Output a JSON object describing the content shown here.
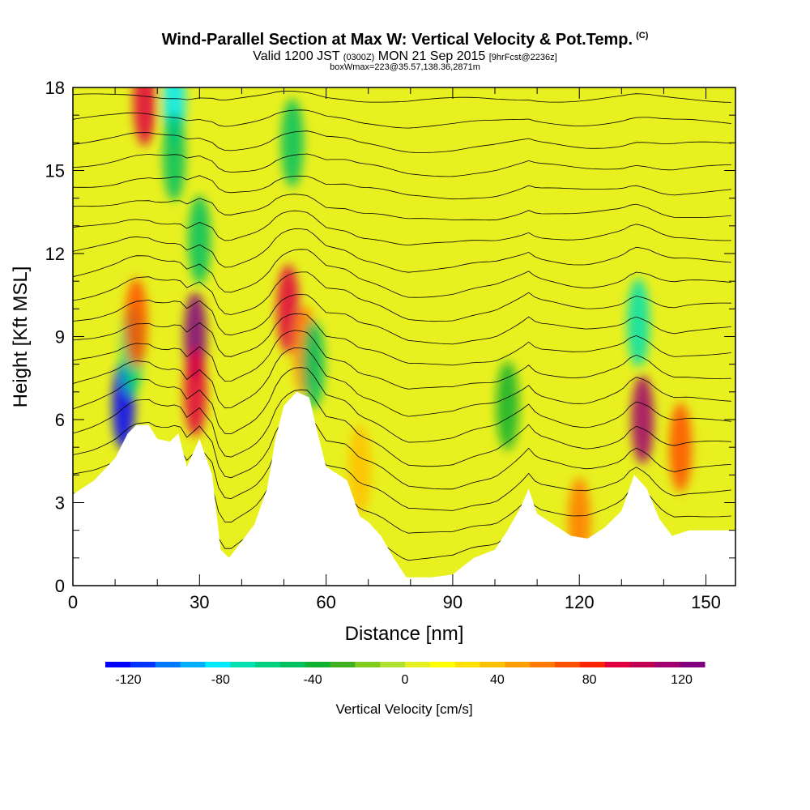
{
  "header": {
    "title": "Wind-Parallel Section at Max W: Vertical Velocity & Pot.Temp.",
    "copyright": "(C)",
    "valid_prefix": "Valid 1200 JST",
    "valid_utc": "(0300Z)",
    "valid_date": "MON 21 Sep 2015",
    "forecast": "[9hrFcst@2236z]",
    "box_info": "boxWmax=223@35.57,138.36,2871m"
  },
  "chart_data": {
    "type": "heatmap",
    "xlabel": "Distance [nm]",
    "ylabel": "Height [Kft MSL]",
    "xlim": [
      0,
      157
    ],
    "ylim": [
      0,
      18
    ],
    "xticks": [
      0,
      30,
      60,
      90,
      120,
      150
    ],
    "yticks": [
      0,
      3,
      6,
      9,
      12,
      15,
      18
    ],
    "terrain_kft": [
      [
        0,
        3.3
      ],
      [
        5,
        3.8
      ],
      [
        10,
        4.6
      ],
      [
        13,
        5.5
      ],
      [
        15,
        5.8
      ],
      [
        18,
        5.8
      ],
      [
        20,
        5.3
      ],
      [
        23,
        5.2
      ],
      [
        25,
        5.5
      ],
      [
        27,
        4.3
      ],
      [
        30,
        5.3
      ],
      [
        33,
        4.0
      ],
      [
        35,
        1.3
      ],
      [
        37,
        1.0
      ],
      [
        40,
        1.6
      ],
      [
        43,
        2.2
      ],
      [
        46,
        3.5
      ],
      [
        48,
        5.3
      ],
      [
        50,
        6.5
      ],
      [
        53,
        7.0
      ],
      [
        56,
        6.8
      ],
      [
        58,
        5.5
      ],
      [
        60,
        4.3
      ],
      [
        63,
        4.0
      ],
      [
        65,
        3.8
      ],
      [
        68,
        2.5
      ],
      [
        70,
        2.3
      ],
      [
        73,
        1.8
      ],
      [
        76,
        1.0
      ],
      [
        79,
        0.3
      ],
      [
        85,
        0.3
      ],
      [
        90,
        0.4
      ],
      [
        95,
        1.0
      ],
      [
        100,
        1.3
      ],
      [
        103,
        2.0
      ],
      [
        106,
        2.8
      ],
      [
        108,
        3.5
      ],
      [
        110,
        2.6
      ],
      [
        113,
        2.3
      ],
      [
        118,
        1.8
      ],
      [
        122,
        1.7
      ],
      [
        126,
        2.1
      ],
      [
        130,
        2.7
      ],
      [
        133,
        4.0
      ],
      [
        136,
        3.5
      ],
      [
        139,
        2.4
      ],
      [
        142,
        1.8
      ],
      [
        146,
        2.0
      ],
      [
        150,
        2.0
      ],
      [
        157,
        2.0
      ]
    ],
    "vertical_velocity_cells": [
      {
        "x": 12,
        "y": 6.5,
        "w": -120
      },
      {
        "x": 14,
        "y": 8.5,
        "w": -60
      },
      {
        "x": 15,
        "y": 9.5,
        "w": 70
      },
      {
        "x": 17,
        "y": 17.5,
        "w": 90
      },
      {
        "x": 24,
        "y": 17.5,
        "w": -80
      },
      {
        "x": 24,
        "y": 15.5,
        "w": -50
      },
      {
        "x": 29,
        "y": 9.0,
        "w": 120
      },
      {
        "x": 29,
        "y": 7.0,
        "w": 90
      },
      {
        "x": 30,
        "y": 12.5,
        "w": -50
      },
      {
        "x": 51,
        "y": 10.0,
        "w": 90
      },
      {
        "x": 55,
        "y": 8.5,
        "w": 60
      },
      {
        "x": 52,
        "y": 16,
        "w": -45
      },
      {
        "x": 57,
        "y": 8.0,
        "w": -45
      },
      {
        "x": 103,
        "y": 6.5,
        "w": -35
      },
      {
        "x": 135,
        "y": 6.0,
        "w": 110
      },
      {
        "x": 134,
        "y": 9.5,
        "w": -70
      },
      {
        "x": 144,
        "y": 5.0,
        "w": 70
      },
      {
        "x": 68,
        "y": 4.2,
        "w": 40
      },
      {
        "x": 120,
        "y": 2.3,
        "w": 60
      }
    ],
    "pot_temp_contours": "black isentropes (~20 lines)",
    "colorbar": {
      "title": "Vertical Velocity [cm/s]",
      "ticks": [
        -120,
        -80,
        -40,
        0,
        40,
        80,
        120
      ],
      "tick_labels": [
        "-120",
        "-80",
        "-40",
        "0",
        "40",
        "80",
        "120"
      ],
      "colors": [
        "#0000ff",
        "#0033ff",
        "#0077ff",
        "#00b0ff",
        "#00eaff",
        "#00e0b0",
        "#00d080",
        "#00c060",
        "#10b030",
        "#40b020",
        "#80cc20",
        "#b0e030",
        "#e6f020",
        "#ffff00",
        "#ffe000",
        "#ffc000",
        "#ff9f00",
        "#ff7a00",
        "#ff5000",
        "#ff2200",
        "#e00040",
        "#c00050",
        "#a00070",
        "#800080"
      ]
    }
  }
}
